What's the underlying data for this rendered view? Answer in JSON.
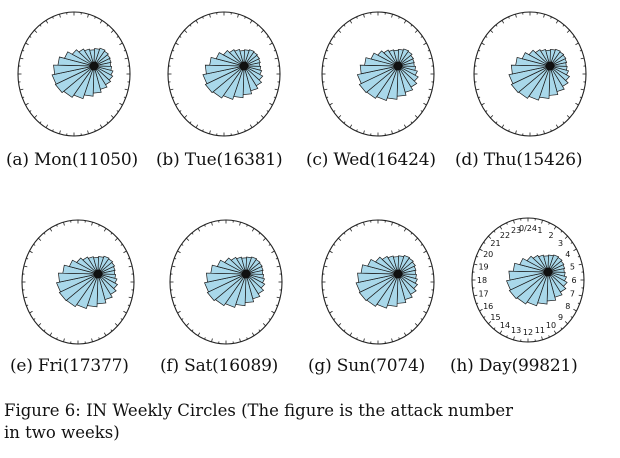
{
  "chart_data": [
    {
      "type": "polar-bar",
      "caption": "(a) Mon(11050)",
      "hour_labels": "hidden",
      "values": [
        0.45,
        0.42,
        0.4,
        0.38,
        0.4,
        0.45,
        0.5,
        0.55,
        0.62,
        0.7,
        0.78,
        0.88,
        0.95,
        1.0,
        0.98,
        0.92,
        0.82,
        0.7,
        0.58,
        0.5,
        0.45,
        0.42,
        0.45,
        0.48
      ]
    },
    {
      "type": "polar-bar",
      "caption": "(b) Tue(16381)",
      "hour_labels": "hidden",
      "values": [
        0.42,
        0.4,
        0.38,
        0.36,
        0.38,
        0.42,
        0.5,
        0.58,
        0.66,
        0.74,
        0.82,
        0.9,
        0.97,
        1.0,
        0.96,
        0.88,
        0.78,
        0.66,
        0.55,
        0.48,
        0.44,
        0.4,
        0.42,
        0.44
      ]
    },
    {
      "type": "polar-bar",
      "caption": "(c) Wed(16424)",
      "hour_labels": "hidden",
      "values": [
        0.44,
        0.4,
        0.38,
        0.37,
        0.4,
        0.46,
        0.54,
        0.62,
        0.7,
        0.78,
        0.86,
        0.93,
        0.98,
        1.0,
        0.95,
        0.86,
        0.76,
        0.64,
        0.54,
        0.47,
        0.43,
        0.41,
        0.43,
        0.46
      ]
    },
    {
      "type": "polar-bar",
      "caption": "(d) Thu(15426)",
      "hour_labels": "hidden",
      "values": [
        0.43,
        0.41,
        0.39,
        0.37,
        0.39,
        0.44,
        0.52,
        0.6,
        0.68,
        0.76,
        0.84,
        0.92,
        0.98,
        1.0,
        0.96,
        0.88,
        0.78,
        0.66,
        0.56,
        0.48,
        0.44,
        0.41,
        0.43,
        0.45
      ]
    },
    {
      "type": "polar-bar",
      "caption": "(e) Fri(17377)",
      "hour_labels": "hidden",
      "values": [
        0.46,
        0.43,
        0.4,
        0.38,
        0.4,
        0.45,
        0.52,
        0.6,
        0.68,
        0.77,
        0.85,
        0.93,
        0.99,
        1.0,
        0.97,
        0.9,
        0.8,
        0.68,
        0.57,
        0.5,
        0.46,
        0.43,
        0.45,
        0.48
      ]
    },
    {
      "type": "polar-bar",
      "caption": "(f) Sat(16089)",
      "hour_labels": "hidden",
      "values": [
        0.44,
        0.42,
        0.4,
        0.38,
        0.4,
        0.44,
        0.5,
        0.58,
        0.66,
        0.74,
        0.82,
        0.9,
        0.96,
        1.0,
        0.97,
        0.9,
        0.8,
        0.68,
        0.57,
        0.49,
        0.45,
        0.42,
        0.44,
        0.46
      ]
    },
    {
      "type": "polar-bar",
      "caption": "(g) Sun(7074)",
      "hour_labels": "hidden",
      "values": [
        0.48,
        0.45,
        0.42,
        0.4,
        0.42,
        0.46,
        0.52,
        0.6,
        0.68,
        0.76,
        0.84,
        0.92,
        0.98,
        1.0,
        0.98,
        0.92,
        0.84,
        0.72,
        0.6,
        0.52,
        0.48,
        0.45,
        0.47,
        0.5
      ]
    },
    {
      "type": "polar-bar",
      "caption": "(h) Day(99821)",
      "hour_labels": [
        "0/24",
        "1",
        "2",
        "3",
        "4",
        "5",
        "6",
        "7",
        "8",
        "9",
        "10",
        "11",
        "12",
        "13",
        "14",
        "15",
        "16",
        "17",
        "18",
        "19",
        "20",
        "21",
        "22",
        "23"
      ],
      "values": [
        0.44,
        0.41,
        0.39,
        0.37,
        0.39,
        0.44,
        0.51,
        0.59,
        0.67,
        0.75,
        0.83,
        0.91,
        0.97,
        1.0,
        0.97,
        0.89,
        0.79,
        0.67,
        0.56,
        0.49,
        0.45,
        0.42,
        0.44,
        0.46
      ]
    }
  ],
  "figure_caption": {
    "line1": "Figure 6: IN Weekly Circles (The figure is the attack number",
    "line2": "in two weeks)"
  },
  "colors": {
    "wedge_fill": "#a9d8ea",
    "wedge_stroke": "#1a1a1a",
    "circle_stroke": "#222222"
  }
}
